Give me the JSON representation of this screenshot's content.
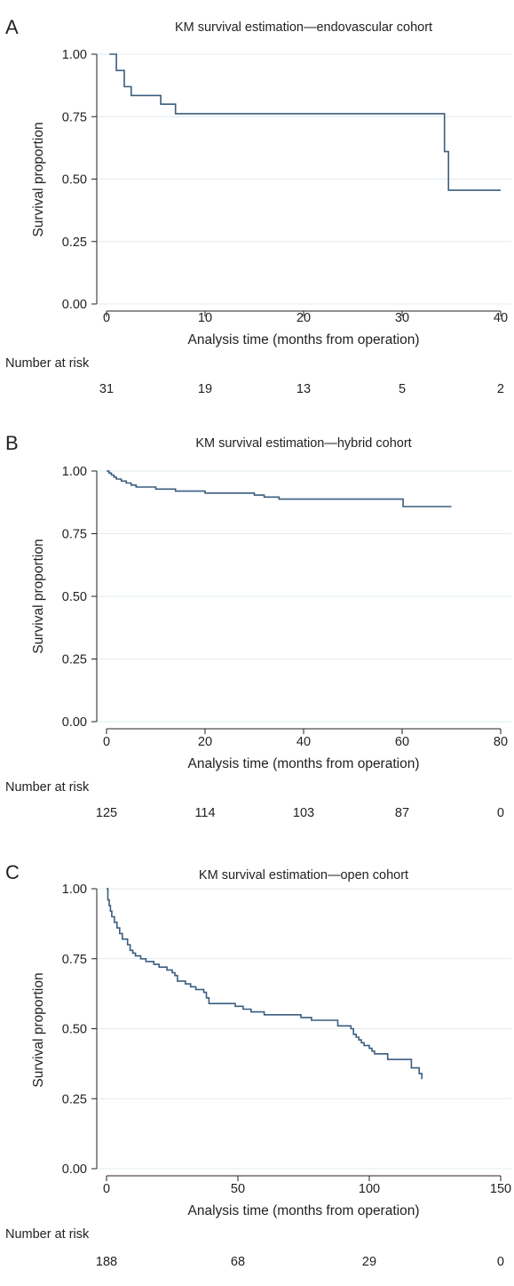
{
  "risk_label": "Number at risk",
  "ylabel": "Survival proportion",
  "xlabel": "Analysis time (months from operation)",
  "line_color": "#3a5d7f",
  "grid_color": "#e2ecef",
  "chart_data": [
    {
      "panel": "A",
      "type": "line",
      "step": true,
      "title": "KM survival estimation—endovascular cohort",
      "xlabel": "Analysis time (months from operation)",
      "ylabel": "Survival proportion",
      "xlim": [
        0,
        40
      ],
      "ylim": [
        0,
        1
      ],
      "xticks": [
        0,
        10,
        20,
        30,
        40
      ],
      "yticks": [
        "0.00",
        "0.25",
        "0.50",
        "0.75",
        "1.00"
      ],
      "grid": true,
      "points": [
        [
          0.3,
          1.0
        ],
        [
          1.0,
          0.935
        ],
        [
          1.8,
          0.87
        ],
        [
          2.5,
          0.835
        ],
        [
          5.5,
          0.8
        ],
        [
          7.0,
          0.762
        ],
        [
          34.2,
          0.762
        ],
        [
          34.3,
          0.61
        ],
        [
          34.7,
          0.455
        ],
        [
          40.0,
          0.455
        ]
      ],
      "number_at_risk": {
        "times": [
          0,
          10,
          20,
          30,
          40
        ],
        "values": [
          "31",
          "19",
          "13",
          "5",
          "2"
        ]
      }
    },
    {
      "panel": "B",
      "type": "line",
      "step": true,
      "title": "KM survival estimation—hybrid cohort",
      "xlabel": "Analysis time (months from operation)",
      "ylabel": "Survival proportion",
      "xlim": [
        0,
        80
      ],
      "ylim": [
        0,
        1
      ],
      "xticks": [
        0,
        20,
        40,
        60,
        80
      ],
      "yticks": [
        "0.00",
        "0.25",
        "0.50",
        "0.75",
        "1.00"
      ],
      "grid": true,
      "points": [
        [
          0,
          1.0
        ],
        [
          0.5,
          0.992
        ],
        [
          1.0,
          0.984
        ],
        [
          1.5,
          0.976
        ],
        [
          2.0,
          0.968
        ],
        [
          3.0,
          0.96
        ],
        [
          4.0,
          0.952
        ],
        [
          5.0,
          0.944
        ],
        [
          6.0,
          0.936
        ],
        [
          10.0,
          0.928
        ],
        [
          14.0,
          0.92
        ],
        [
          20.0,
          0.912
        ],
        [
          30.0,
          0.904
        ],
        [
          32.0,
          0.896
        ],
        [
          35.0,
          0.888
        ],
        [
          60.0,
          0.888
        ],
        [
          60.2,
          0.858
        ],
        [
          70.0,
          0.858
        ]
      ],
      "number_at_risk": {
        "times": [
          0,
          20,
          40,
          60,
          80
        ],
        "values": [
          "125",
          "114",
          "103",
          "87",
          "0"
        ]
      }
    },
    {
      "panel": "C",
      "type": "line",
      "step": true,
      "title": "KM survival estimation—open cohort",
      "xlabel": "Analysis time (months from operation)",
      "ylabel": "Survival proportion",
      "xlim": [
        0,
        150
      ],
      "ylim": [
        0,
        1
      ],
      "xticks": [
        0,
        50,
        100,
        150
      ],
      "yticks": [
        "0.00",
        "0.25",
        "0.50",
        "0.75",
        "1.00"
      ],
      "grid": true,
      "points": [
        [
          0,
          1.0
        ],
        [
          0.5,
          0.96
        ],
        [
          1,
          0.94
        ],
        [
          1.5,
          0.92
        ],
        [
          2,
          0.9
        ],
        [
          3,
          0.88
        ],
        [
          4,
          0.86
        ],
        [
          5,
          0.84
        ],
        [
          6,
          0.82
        ],
        [
          8,
          0.8
        ],
        [
          9,
          0.78
        ],
        [
          10,
          0.77
        ],
        [
          11,
          0.76
        ],
        [
          13,
          0.75
        ],
        [
          15,
          0.74
        ],
        [
          18,
          0.73
        ],
        [
          20,
          0.72
        ],
        [
          23,
          0.71
        ],
        [
          25,
          0.7
        ],
        [
          26,
          0.69
        ],
        [
          27,
          0.67
        ],
        [
          30,
          0.66
        ],
        [
          32,
          0.65
        ],
        [
          34,
          0.64
        ],
        [
          37,
          0.63
        ],
        [
          38,
          0.61
        ],
        [
          39,
          0.59
        ],
        [
          48,
          0.59
        ],
        [
          49,
          0.58
        ],
        [
          52,
          0.57
        ],
        [
          55,
          0.56
        ],
        [
          60,
          0.55
        ],
        [
          73,
          0.55
        ],
        [
          74,
          0.54
        ],
        [
          78,
          0.53
        ],
        [
          86,
          0.53
        ],
        [
          88,
          0.51
        ],
        [
          93,
          0.5
        ],
        [
          94,
          0.48
        ],
        [
          95,
          0.47
        ],
        [
          96,
          0.46
        ],
        [
          97,
          0.45
        ],
        [
          98,
          0.44
        ],
        [
          100,
          0.43
        ],
        [
          101,
          0.42
        ],
        [
          102,
          0.41
        ],
        [
          106,
          0.41
        ],
        [
          107,
          0.39
        ],
        [
          115,
          0.39
        ],
        [
          116,
          0.36
        ],
        [
          118,
          0.36
        ],
        [
          119,
          0.34
        ],
        [
          120,
          0.32
        ]
      ],
      "number_at_risk": {
        "times": [
          0,
          50,
          100,
          150
        ],
        "values": [
          "188",
          "68",
          "29",
          "0"
        ]
      }
    }
  ]
}
